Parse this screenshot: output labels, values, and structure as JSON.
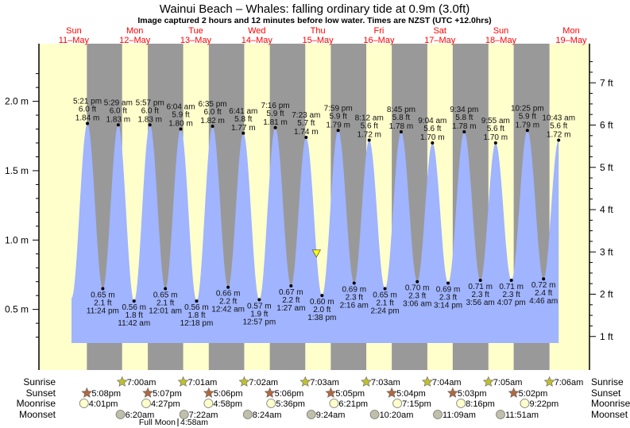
{
  "chart_data": {
    "type": "area",
    "title": "Wainui Beach – Whales: falling  ordinary tide at 0.9m (3.0ft)",
    "subtitle": "Image captured 2 hours and 12 minutes before low water. Times are NZST (UTC +12.0hrs)",
    "ylim_m": [
      0.2,
      2.35
    ],
    "y_ticks_m": [
      "2.0 m",
      "1.5 m",
      "1.0 m",
      "0.5 m"
    ],
    "y_tick_values_m": [
      2.0,
      1.5,
      1.0,
      0.5
    ],
    "y_ticks_ft": [
      "7 ft",
      "6 ft",
      "5 ft",
      "4 ft",
      "3 ft",
      "2 ft",
      "1 ft"
    ],
    "y_tick_values_ft": [
      7,
      6,
      5,
      4,
      3,
      2,
      1
    ],
    "days": [
      {
        "weekday": "Sun",
        "date": "11–May"
      },
      {
        "weekday": "Mon",
        "date": "12–May"
      },
      {
        "weekday": "Tue",
        "date": "13–May"
      },
      {
        "weekday": "Wed",
        "date": "14–May"
      },
      {
        "weekday": "Thu",
        "date": "15–May"
      },
      {
        "weekday": "Fri",
        "date": "16–May"
      },
      {
        "weekday": "Sat",
        "date": "17–May"
      },
      {
        "weekday": "Sun",
        "date": "18–May"
      },
      {
        "weekday": "Mon",
        "date": "19–May"
      }
    ],
    "extremes": [
      {
        "type": "high",
        "day": 0,
        "time": "5:21 pm",
        "ft": "6.0 ft",
        "m": 1.84
      },
      {
        "type": "low",
        "day": 0,
        "time": "11:24 pm",
        "ft": "2.1 ft",
        "m": 0.65
      },
      {
        "type": "high",
        "day": 1,
        "time": "5:29 am",
        "ft": "6.0 ft",
        "m": 1.83
      },
      {
        "type": "low",
        "day": 1,
        "time": "11:42 am",
        "ft": "1.8 ft",
        "m": 0.56
      },
      {
        "type": "high",
        "day": 1,
        "time": "5:57 pm",
        "ft": "6.0 ft",
        "m": 1.83
      },
      {
        "type": "low",
        "day": 2,
        "time": "12:01 am",
        "ft": "2.1 ft",
        "m": 0.65
      },
      {
        "type": "high",
        "day": 2,
        "time": "6:04 am",
        "ft": "5.9 ft",
        "m": 1.8
      },
      {
        "type": "low",
        "day": 2,
        "time": "12:18 pm",
        "ft": "1.8 ft",
        "m": 0.56
      },
      {
        "type": "high",
        "day": 2,
        "time": "6:35 pm",
        "ft": "6.0 ft",
        "m": 1.82
      },
      {
        "type": "low",
        "day": 3,
        "time": "12:42 am",
        "ft": "2.2 ft",
        "m": 0.66
      },
      {
        "type": "high",
        "day": 3,
        "time": "6:41 am",
        "ft": "5.8 ft",
        "m": 1.77
      },
      {
        "type": "low",
        "day": 3,
        "time": "12:57 pm",
        "ft": "1.9 ft",
        "m": 0.57
      },
      {
        "type": "high",
        "day": 3,
        "time": "7:16 pm",
        "ft": "5.9 ft",
        "m": 1.81
      },
      {
        "type": "low",
        "day": 4,
        "time": "1:27 am",
        "ft": "2.2 ft",
        "m": 0.67
      },
      {
        "type": "high",
        "day": 4,
        "time": "7:23 am",
        "ft": "5.7 ft",
        "m": 1.74
      },
      {
        "type": "low",
        "day": 4,
        "time": "1:38 pm",
        "ft": "2.0 ft",
        "m": 0.6
      },
      {
        "type": "high",
        "day": 4,
        "time": "7:59 pm",
        "ft": "5.9 ft",
        "m": 1.79
      },
      {
        "type": "low",
        "day": 5,
        "time": "2:16 am",
        "ft": "2.3 ft",
        "m": 0.69
      },
      {
        "type": "high",
        "day": 5,
        "time": "8:12 am",
        "ft": "5.6 ft",
        "m": 1.72
      },
      {
        "type": "low",
        "day": 5,
        "time": "2:24 pm",
        "ft": "2.1 ft",
        "m": 0.65
      },
      {
        "type": "high",
        "day": 5,
        "time": "8:45 pm",
        "ft": "5.8 ft",
        "m": 1.78
      },
      {
        "type": "low",
        "day": 6,
        "time": "3:06 am",
        "ft": "2.3 ft",
        "m": 0.7
      },
      {
        "type": "high",
        "day": 6,
        "time": "9:04 am",
        "ft": "5.6 ft",
        "m": 1.7
      },
      {
        "type": "low",
        "day": 6,
        "time": "3:14 pm",
        "ft": "2.3 ft",
        "m": 0.69
      },
      {
        "type": "high",
        "day": 6,
        "time": "9:34 pm",
        "ft": "5.8 ft",
        "m": 1.78
      },
      {
        "type": "low",
        "day": 7,
        "time": "3:56 am",
        "ft": "2.3 ft",
        "m": 0.71
      },
      {
        "type": "high",
        "day": 7,
        "time": "9:55 am",
        "ft": "5.6 ft",
        "m": 1.7
      },
      {
        "type": "low",
        "day": 7,
        "time": "4:07 pm",
        "ft": "2.3 ft",
        "m": 0.71
      },
      {
        "type": "high",
        "day": 7,
        "time": "10:25 pm",
        "ft": "5.9 ft",
        "m": 1.79
      },
      {
        "type": "low",
        "day": 8,
        "time": "4:46 am",
        "ft": "2.4 ft",
        "m": 0.72
      },
      {
        "type": "high",
        "day": 8,
        "time": "10:43 am",
        "ft": "5.6 ft",
        "m": 1.72
      }
    ],
    "current": {
      "day": 4,
      "time": "11:26 am",
      "m": 0.9
    },
    "colors": {
      "tide": "#a0b4ff",
      "day": "#ffffcc",
      "night": "#999999",
      "day_label": "#ff0000",
      "marker": "#ffff00"
    }
  },
  "almanac": {
    "labels": {
      "sunrise": "Sunrise",
      "sunset": "Sunset",
      "moonrise": "Moonrise",
      "moonset": "Moonset"
    },
    "sunrise": [
      {
        "day": 1,
        "time": "7:00am"
      },
      {
        "day": 2,
        "time": "7:01am"
      },
      {
        "day": 3,
        "time": "7:02am"
      },
      {
        "day": 4,
        "time": "7:03am"
      },
      {
        "day": 5,
        "time": "7:03am"
      },
      {
        "day": 6,
        "time": "7:04am"
      },
      {
        "day": 7,
        "time": "7:05am"
      },
      {
        "day": 8,
        "time": "7:06am"
      }
    ],
    "sunset": [
      {
        "day": 0,
        "time": "5:08pm"
      },
      {
        "day": 1,
        "time": "5:07pm"
      },
      {
        "day": 2,
        "time": "5:06pm"
      },
      {
        "day": 3,
        "time": "5:06pm"
      },
      {
        "day": 4,
        "time": "5:05pm"
      },
      {
        "day": 5,
        "time": "5:04pm"
      },
      {
        "day": 6,
        "time": "5:03pm"
      },
      {
        "day": 7,
        "time": "5:02pm"
      }
    ],
    "moonrise": [
      {
        "day": 0,
        "time": "4:01pm"
      },
      {
        "day": 1,
        "time": "4:27pm"
      },
      {
        "day": 2,
        "time": "4:58pm"
      },
      {
        "day": 3,
        "time": "5:36pm"
      },
      {
        "day": 4,
        "time": "6:21pm"
      },
      {
        "day": 5,
        "time": "7:15pm"
      },
      {
        "day": 6,
        "time": "8:16pm"
      },
      {
        "day": 7,
        "time": "9:22pm"
      }
    ],
    "moonset": [
      {
        "day": 1,
        "time": "6:20am"
      },
      {
        "day": 2,
        "time": "7:22am"
      },
      {
        "day": 3,
        "time": "8:24am"
      },
      {
        "day": 4,
        "time": "9:24am"
      },
      {
        "day": 5,
        "time": "10:20am"
      },
      {
        "day": 6,
        "time": "11:09am"
      },
      {
        "day": 7,
        "time": "11:51am"
      }
    ],
    "phase": {
      "label": "Full Moon",
      "day": 2,
      "time": "4:58am"
    }
  }
}
